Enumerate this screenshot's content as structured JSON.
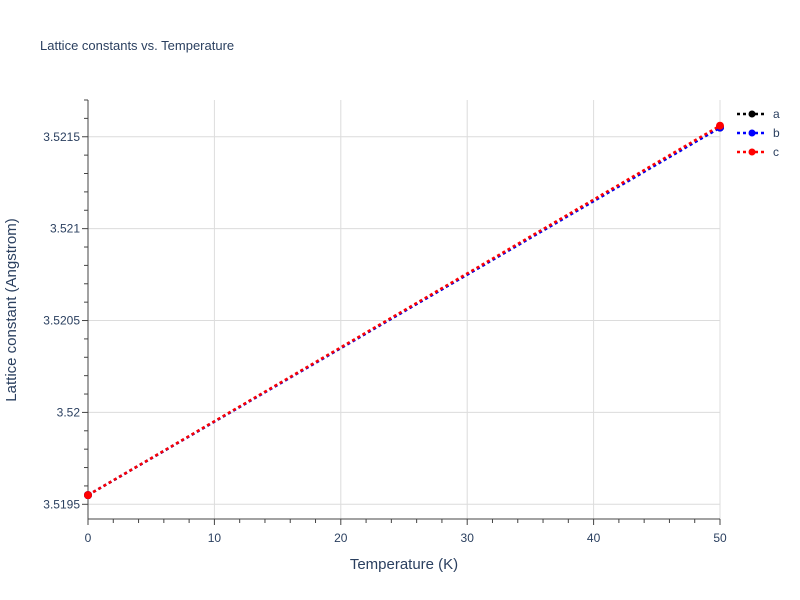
{
  "chart_data": {
    "type": "line",
    "title": "Lattice constants vs. Temperature",
    "xlabel": "Temperature (K)",
    "ylabel": "Lattice constant (Angstrom)",
    "xlim": [
      0,
      50
    ],
    "ylim": [
      3.51942,
      3.5217
    ],
    "xticks": [
      0,
      10,
      20,
      30,
      40,
      50
    ],
    "yticks": [
      3.5195,
      3.52,
      3.5205,
      3.521,
      3.5215
    ],
    "ytick_labels": [
      "3.5195",
      "3.52",
      "3.5205",
      "3.521",
      "3.5215"
    ],
    "grid": true,
    "legend_position": "top-right",
    "series": [
      {
        "name": "a",
        "color": "#000000",
        "x": [
          0,
          50
        ],
        "y": [
          3.51955,
          3.52155
        ]
      },
      {
        "name": "b",
        "color": "#0000ff",
        "x": [
          0,
          50
        ],
        "y": [
          3.51955,
          3.52155
        ]
      },
      {
        "name": "c",
        "color": "#ff0000",
        "x": [
          0,
          50
        ],
        "y": [
          3.51955,
          3.52156
        ]
      }
    ]
  }
}
